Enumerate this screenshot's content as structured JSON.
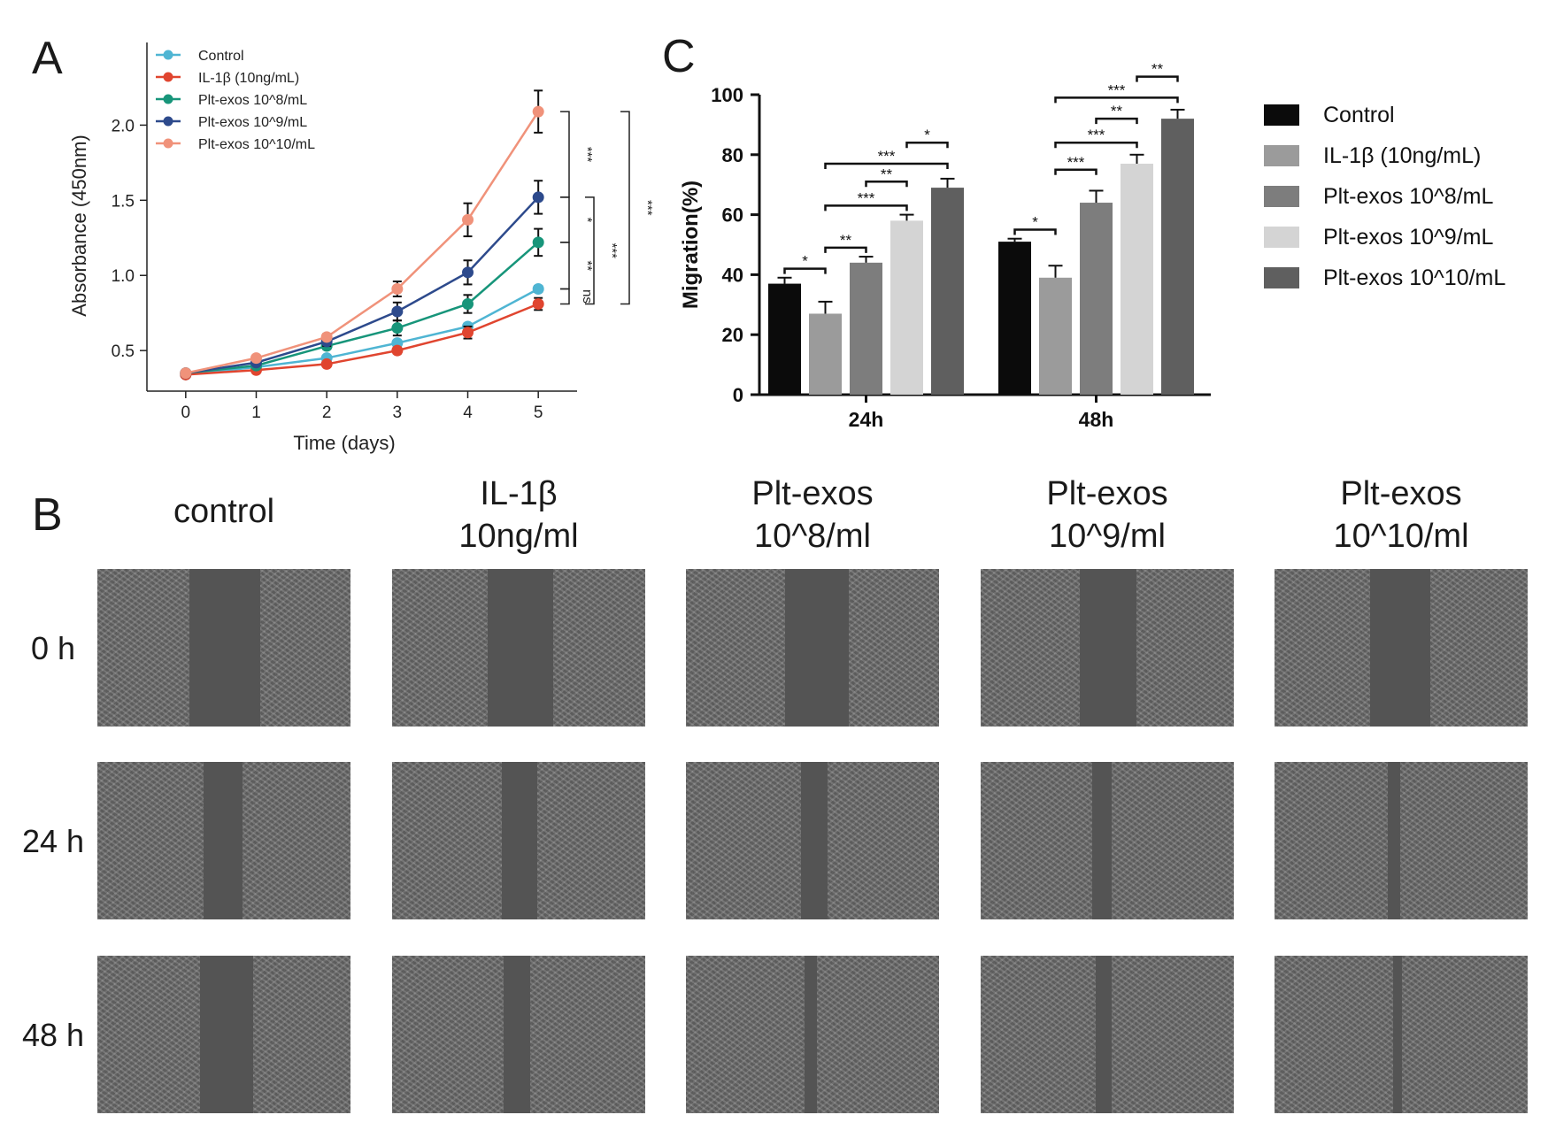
{
  "panel_labels": {
    "a": "A",
    "b": "B",
    "c": "C"
  },
  "chart_data": [
    {
      "type": "line",
      "x": [
        0,
        1,
        2,
        3,
        4,
        5
      ],
      "xlabel": "Time (days)",
      "ylabel": "Absorbance (450nm)",
      "xlim": [
        -0.55,
        5.55
      ],
      "ylim": [
        0.23,
        2.55
      ],
      "xticks": [
        "0",
        "1",
        "2",
        "3",
        "4",
        "5"
      ],
      "yticks": [
        "0.5",
        "1.0",
        "1.5",
        "2.0"
      ],
      "legend_position": "top-left",
      "series": [
        {
          "name": "Control",
          "color": "#4fb5d3",
          "values": [
            0.34,
            0.39,
            0.45,
            0.55,
            0.66,
            0.91
          ],
          "errors": [
            0.01,
            0.01,
            0.01,
            0.01,
            0.02,
            0.02
          ]
        },
        {
          "name": "IL-1β (10ng/mL)",
          "color": "#e0452f",
          "values": [
            0.34,
            0.37,
            0.41,
            0.5,
            0.62,
            0.81
          ],
          "errors": [
            0.01,
            0.01,
            0.01,
            0.02,
            0.04,
            0.04
          ]
        },
        {
          "name": "Plt-exos 10^8/mL",
          "color": "#17957a",
          "values": [
            0.35,
            0.4,
            0.53,
            0.65,
            0.81,
            1.22
          ],
          "errors": [
            0.01,
            0.01,
            0.02,
            0.05,
            0.06,
            0.09
          ]
        },
        {
          "name": "Plt-exos 10^9/mL",
          "color": "#2d4a8c",
          "values": [
            0.35,
            0.42,
            0.56,
            0.76,
            1.02,
            1.52
          ],
          "errors": [
            0.01,
            0.01,
            0.03,
            0.06,
            0.08,
            0.11
          ]
        },
        {
          "name": "Plt-exos 10^10/mL",
          "color": "#f0927a",
          "values": [
            0.35,
            0.45,
            0.59,
            0.91,
            1.37,
            2.09
          ],
          "errors": [
            0.01,
            0.01,
            0.02,
            0.05,
            0.11,
            0.14
          ]
        }
      ],
      "significance": [
        {
          "label": "***",
          "y_from": 2.09,
          "y_to": 1.52
        },
        {
          "label": "*",
          "y_from": 1.52,
          "y_to": 1.22
        },
        {
          "label": "**",
          "y_from": 1.22,
          "y_to": 0.91
        },
        {
          "label": "ns",
          "y_from": 0.91,
          "y_to": 0.81
        },
        {
          "label": "***",
          "y_from": 1.52,
          "y_to": 0.81
        },
        {
          "label": "***",
          "y_from": 2.09,
          "y_to": 0.81
        }
      ]
    },
    {
      "type": "bar",
      "categories": [
        "24h",
        "48h"
      ],
      "ylabel": "Migration(%)",
      "ylim": [
        0,
        100
      ],
      "yticks": [
        "0",
        "20",
        "40",
        "60",
        "80",
        "100"
      ],
      "legend_position": "right",
      "series": [
        {
          "name": "Control",
          "color": "#0b0b0b",
          "values": [
            37,
            51
          ],
          "errors": [
            2,
            1
          ]
        },
        {
          "name": "IL-1β (10ng/mL)",
          "color": "#9b9b9b",
          "values": [
            27,
            39
          ],
          "errors": [
            4,
            4
          ]
        },
        {
          "name": "Plt-exos 10^8/mL",
          "color": "#7d7d7d",
          "values": [
            44,
            64
          ],
          "errors": [
            2,
            4
          ]
        },
        {
          "name": "Plt-exos 10^9/mL",
          "color": "#d4d4d4",
          "values": [
            58,
            77
          ],
          "errors": [
            2,
            3
          ]
        },
        {
          "name": "Plt-exos 10^10/mL",
          "color": "#5f5f5f",
          "values": [
            69,
            92
          ],
          "errors": [
            3,
            3
          ]
        }
      ],
      "significance": [
        {
          "group": 0,
          "from": 0,
          "to": 1,
          "y": 42,
          "label": "*"
        },
        {
          "group": 0,
          "from": 1,
          "to": 2,
          "y": 49,
          "label": "**"
        },
        {
          "group": 0,
          "from": 1,
          "to": 3,
          "y": 63,
          "label": "***"
        },
        {
          "group": 0,
          "from": 2,
          "to": 3,
          "y": 71,
          "label": "**"
        },
        {
          "group": 0,
          "from": 1,
          "to": 4,
          "y": 77,
          "label": "***"
        },
        {
          "group": 0,
          "from": 3,
          "to": 4,
          "y": 84,
          "label": "*"
        },
        {
          "group": 1,
          "from": 0,
          "to": 1,
          "y": 55,
          "label": "*"
        },
        {
          "group": 1,
          "from": 1,
          "to": 2,
          "y": 75,
          "label": "***"
        },
        {
          "group": 1,
          "from": 1,
          "to": 3,
          "y": 84,
          "label": "***"
        },
        {
          "group": 1,
          "from": 2,
          "to": 3,
          "y": 92,
          "label": "**"
        },
        {
          "group": 1,
          "from": 1,
          "to": 4,
          "y": 99,
          "label": "***"
        },
        {
          "group": 1,
          "from": 3,
          "to": 4,
          "y": 106,
          "label": "**"
        }
      ]
    }
  ],
  "panel_b": {
    "columns": [
      {
        "line1": "",
        "line2": "control"
      },
      {
        "line1": "IL-1β",
        "line2": "10ng/ml"
      },
      {
        "line1": "Plt-exos",
        "line2": "10^8/ml"
      },
      {
        "line1": "Plt-exos",
        "line2": "10^9/ml"
      },
      {
        "line1": "Plt-exos",
        "line2": "10^10/ml"
      }
    ],
    "rows": [
      "0 h",
      "24 h",
      "48 h"
    ]
  }
}
